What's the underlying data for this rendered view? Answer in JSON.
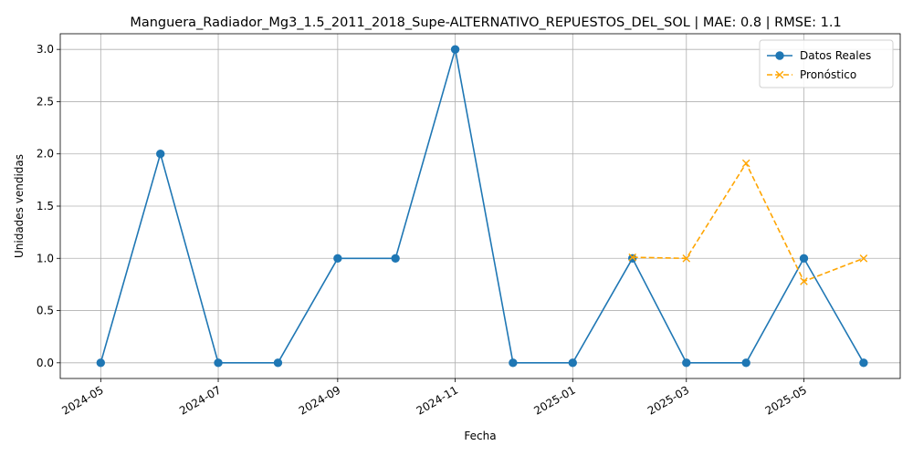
{
  "chart_data": {
    "type": "line",
    "title": "Manguera_Radiador_Mg3_1.5_2011_2018_Supe-ALTERNATIVO_REPUESTOS_DEL_SOL | MAE: 0.8 | RMSE: 1.1",
    "xlabel": "Fecha",
    "ylabel": "Unidades vendidas",
    "x_range": [
      "2024-04-10",
      "2025-06-20"
    ],
    "ylim": [
      -0.15,
      3.15
    ],
    "grid": true,
    "legend_position": "top-right",
    "x_ticks": [
      "2024-05",
      "2024-07",
      "2024-09",
      "2024-11",
      "2025-01",
      "2025-03",
      "2025-05"
    ],
    "y_ticks": [
      "0.0",
      "0.5",
      "1.0",
      "1.5",
      "2.0",
      "2.5",
      "3.0"
    ],
    "series": [
      {
        "name": "Datos Reales",
        "color": "#1f77b4",
        "marker": "circle",
        "linestyle": "solid",
        "x": [
          "2024-05-01",
          "2024-06-01",
          "2024-07-01",
          "2024-08-01",
          "2024-09-01",
          "2024-10-01",
          "2024-11-01",
          "2024-12-01",
          "2025-01-01",
          "2025-02-01",
          "2025-03-01",
          "2025-04-01",
          "2025-05-01",
          "2025-06-01"
        ],
        "y": [
          0,
          2,
          0,
          0,
          1,
          1,
          3,
          0,
          0,
          1,
          0,
          0,
          1,
          0
        ]
      },
      {
        "name": "Pronóstico",
        "color": "#ffa500",
        "marker": "x",
        "linestyle": "dashed",
        "x": [
          "2025-02-01",
          "2025-03-01",
          "2025-04-01",
          "2025-05-01",
          "2025-06-01"
        ],
        "y": [
          1.01,
          1.0,
          1.91,
          0.78,
          1.0
        ]
      }
    ]
  }
}
